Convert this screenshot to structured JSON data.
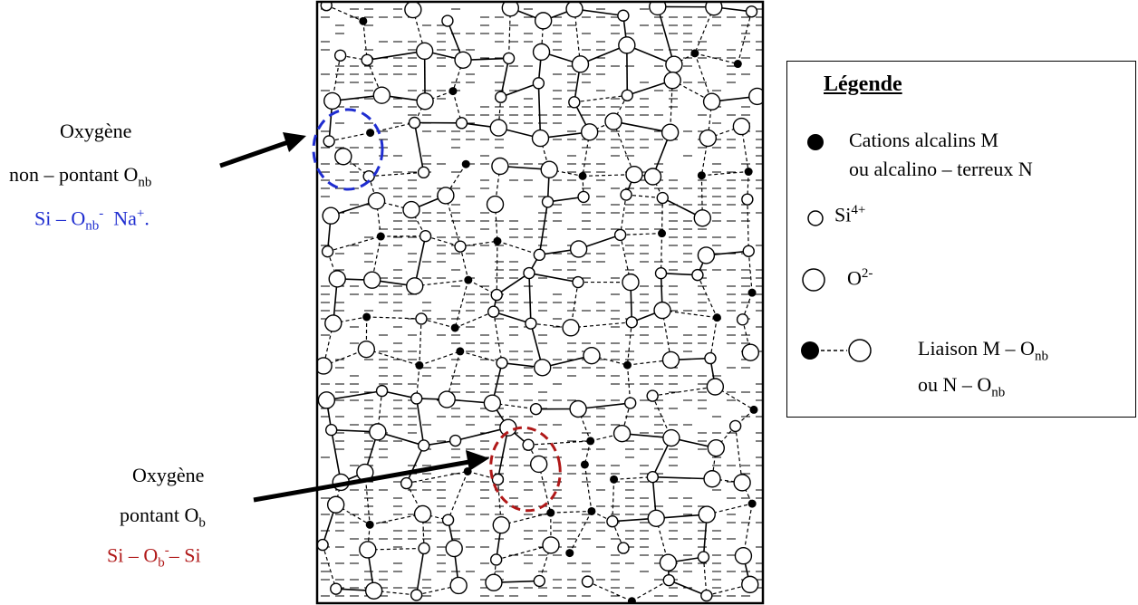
{
  "annotations": {
    "non_bridging": {
      "line1": "Oxygène",
      "line2_prefix": "non – pontant O",
      "line2_sub": "nb",
      "formula_a": "Si – O",
      "formula_sub": "nb",
      "formula_sup": "-",
      "formula_b": "Na",
      "formula_b_sup": "+",
      "formula_end": ".",
      "formula_color": "#1f2dd0"
    },
    "bridging": {
      "line1": "Oxygène",
      "line2_prefix": "pontant O",
      "line2_sub": "b",
      "formula_a": "Si – O",
      "formula_sub": "b",
      "formula_sup": "-",
      "formula_b": "– Si",
      "formula_color": "#b01818"
    }
  },
  "legend": {
    "title": "Légende",
    "items": [
      {
        "icon": "filled-circle-icon",
        "line1": "Cations alcalins M",
        "line2": "ou alcalino – terreux N"
      },
      {
        "icon": "small-open-circle-icon",
        "text": "Si",
        "sup": "4+"
      },
      {
        "icon": "large-open-circle-icon",
        "text": "O",
        "sup": "2-"
      },
      {
        "icon": "bond-icon",
        "line1_prefix": "Liaison M – O",
        "line1_sub": "nb",
        "line2_prefix": "ou N – O",
        "line2_sub": "nb"
      }
    ]
  },
  "colors": {
    "highlight_nb": "#1f2dd0",
    "highlight_b": "#b01818",
    "ink": "#000000"
  }
}
